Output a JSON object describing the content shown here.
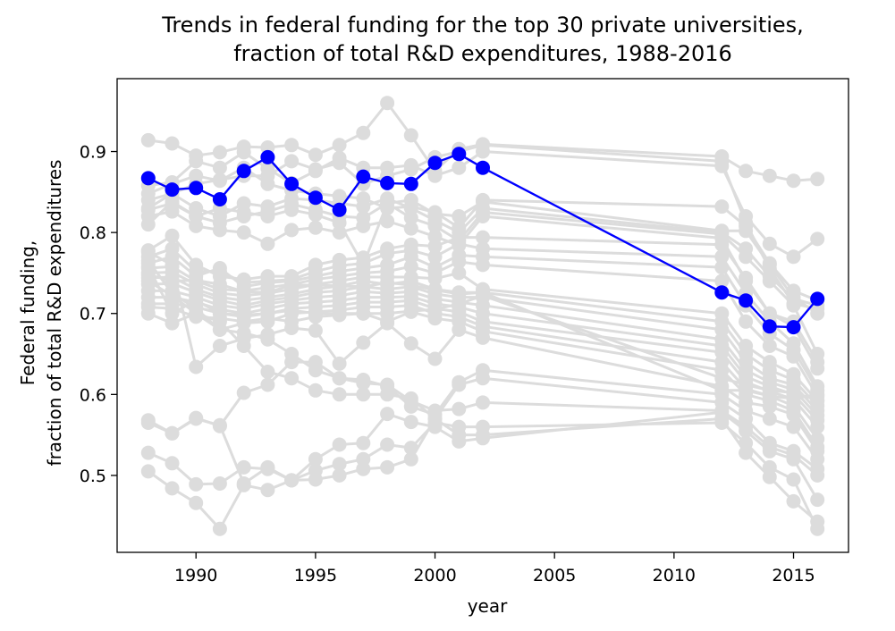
{
  "chart_data": {
    "type": "line",
    "title": [
      "Trends in federal funding for the top 30 private universities,",
      "fraction of total R&D expenditures, 1988-2016"
    ],
    "xlabel": "year",
    "ylabel": [
      "Federal funding,",
      "fraction of total R&D expenditures"
    ],
    "xlim": [
      1986.7,
      2017.3
    ],
    "ylim": [
      0.405,
      0.99
    ],
    "xticks": [
      1990,
      1995,
      2000,
      2005,
      2010,
      2015
    ],
    "yticks": [
      0.5,
      0.6,
      0.7,
      0.8,
      0.9
    ],
    "x": [
      1988,
      1989,
      1990,
      1991,
      1992,
      1993,
      1994,
      1995,
      1996,
      1997,
      1998,
      1999,
      2000,
      2001,
      2002,
      2012,
      2013,
      2014,
      2015,
      2016
    ],
    "grid": false,
    "colors": {
      "highlight": "#0000ff",
      "background_series": "#dcdcdc"
    },
    "highlighted_series": {
      "values": [
        0.867,
        0.853,
        0.855,
        0.841,
        0.876,
        0.893,
        0.86,
        0.843,
        0.828,
        0.869,
        0.861,
        0.86,
        0.886,
        0.897,
        0.88,
        0.726,
        0.716,
        0.684,
        0.683,
        0.718
      ]
    },
    "background_series": [
      {
        "values": [
          0.914,
          0.91,
          0.895,
          0.899,
          0.906,
          0.905,
          0.908,
          0.896,
          0.908,
          0.923,
          0.96,
          0.92,
          0.876,
          0.903,
          0.909,
          0.894,
          0.876,
          0.87,
          0.864,
          0.866
        ]
      },
      {
        "values": [
          0.858,
          0.862,
          0.888,
          0.88,
          0.899,
          0.879,
          0.861,
          0.876,
          0.892,
          0.88,
          0.88,
          0.883,
          0.87,
          0.88,
          0.9,
          0.882,
          0.82,
          0.786,
          0.77,
          0.792
        ]
      },
      {
        "values": [
          0.848,
          0.86,
          0.87,
          0.864,
          0.88,
          0.86,
          0.852,
          0.848,
          0.845,
          0.842,
          0.83,
          0.832,
          0.825,
          0.806,
          0.84,
          0.832,
          0.808,
          0.762,
          0.728,
          0.716
        ]
      },
      {
        "values": [
          0.84,
          0.848,
          0.83,
          0.82,
          0.836,
          0.832,
          0.842,
          0.84,
          0.836,
          0.832,
          0.842,
          0.83,
          0.815,
          0.8,
          0.83,
          0.8,
          0.78,
          0.746,
          0.718,
          0.71
        ]
      },
      {
        "values": [
          0.828,
          0.836,
          0.82,
          0.812,
          0.82,
          0.826,
          0.835,
          0.828,
          0.82,
          0.818,
          0.836,
          0.818,
          0.808,
          0.79,
          0.825,
          0.798,
          0.77,
          0.74,
          0.71,
          0.65
        ]
      },
      {
        "values": [
          0.82,
          0.826,
          0.808,
          0.803,
          0.8,
          0.786,
          0.803,
          0.806,
          0.8,
          0.808,
          0.814,
          0.805,
          0.795,
          0.784,
          0.82,
          0.793,
          0.74,
          0.7,
          0.69,
          0.64
        ]
      },
      {
        "values": [
          0.778,
          0.796,
          0.76,
          0.746,
          0.742,
          0.746,
          0.746,
          0.76,
          0.766,
          0.769,
          0.78,
          0.785,
          0.783,
          0.794,
          0.794,
          0.785,
          0.744,
          0.7,
          0.684,
          0.632
        ]
      },
      {
        "values": [
          0.77,
          0.78,
          0.752,
          0.752,
          0.738,
          0.74,
          0.742,
          0.752,
          0.759,
          0.762,
          0.774,
          0.778,
          0.77,
          0.786,
          0.78,
          0.77,
          0.725,
          0.69,
          0.663,
          0.61
        ]
      },
      {
        "values": [
          0.762,
          0.77,
          0.746,
          0.756,
          0.733,
          0.738,
          0.74,
          0.746,
          0.752,
          0.756,
          0.76,
          0.77,
          0.757,
          0.772,
          0.77,
          0.757,
          0.71,
          0.675,
          0.655,
          0.605
        ]
      },
      {
        "values": [
          0.756,
          0.758,
          0.74,
          0.73,
          0.728,
          0.732,
          0.736,
          0.742,
          0.746,
          0.75,
          0.752,
          0.758,
          0.75,
          0.764,
          0.76,
          0.74,
          0.69,
          0.66,
          0.647,
          0.598
        ]
      },
      {
        "values": [
          0.75,
          0.751,
          0.736,
          0.725,
          0.722,
          0.725,
          0.73,
          0.736,
          0.74,
          0.745,
          0.745,
          0.745,
          0.743,
          0.75,
          0.73,
          0.7,
          0.66,
          0.64,
          0.625,
          0.592
        ]
      },
      {
        "values": [
          0.744,
          0.745,
          0.73,
          0.72,
          0.716,
          0.72,
          0.724,
          0.73,
          0.734,
          0.74,
          0.736,
          0.74,
          0.73,
          0.726,
          0.726,
          0.69,
          0.65,
          0.63,
          0.618,
          0.586
        ]
      },
      {
        "values": [
          0.736,
          0.737,
          0.726,
          0.716,
          0.71,
          0.716,
          0.72,
          0.726,
          0.728,
          0.733,
          0.73,
          0.733,
          0.724,
          0.72,
          0.72,
          0.68,
          0.64,
          0.62,
          0.612,
          0.58
        ]
      },
      {
        "values": [
          0.728,
          0.728,
          0.72,
          0.71,
          0.706,
          0.712,
          0.716,
          0.72,
          0.722,
          0.727,
          0.725,
          0.727,
          0.718,
          0.714,
          0.71,
          0.668,
          0.63,
          0.615,
          0.606,
          0.574
        ]
      },
      {
        "values": [
          0.72,
          0.72,
          0.714,
          0.705,
          0.7,
          0.706,
          0.712,
          0.714,
          0.716,
          0.72,
          0.72,
          0.721,
          0.712,
          0.708,
          0.7,
          0.66,
          0.622,
          0.61,
          0.6,
          0.568
        ]
      },
      {
        "values": [
          0.712,
          0.712,
          0.708,
          0.7,
          0.696,
          0.7,
          0.706,
          0.708,
          0.71,
          0.714,
          0.714,
          0.716,
          0.706,
          0.702,
          0.69,
          0.652,
          0.615,
          0.604,
          0.594,
          0.56
        ]
      },
      {
        "values": [
          0.7,
          0.688,
          0.7,
          0.68,
          0.688,
          0.69,
          0.7,
          0.702,
          0.704,
          0.708,
          0.708,
          0.71,
          0.7,
          0.696,
          0.684,
          0.64,
          0.607,
          0.598,
          0.586,
          0.545
        ]
      },
      {
        "values": [
          0.708,
          0.706,
          0.696,
          0.694,
          0.69,
          0.694,
          0.69,
          0.696,
          0.698,
          0.7,
          0.69,
          0.702,
          0.694,
          0.69,
          0.678,
          0.63,
          0.6,
          0.592,
          0.58,
          0.535
        ]
      },
      {
        "values": [
          0.776,
          0.76,
          0.634,
          0.66,
          0.669,
          0.674,
          0.682,
          0.679,
          0.638,
          0.664,
          0.688,
          0.663,
          0.644,
          0.68,
          0.67,
          0.61,
          0.59,
          0.585,
          0.575,
          0.53
        ]
      },
      {
        "values": [
          0.765,
          0.725,
          0.706,
          0.68,
          0.676,
          0.668,
          0.65,
          0.63,
          0.62,
          0.618,
          0.61,
          0.585,
          0.575,
          0.615,
          0.63,
          0.6,
          0.58,
          0.57,
          0.56,
          0.52
        ]
      },
      {
        "values": [
          0.74,
          0.722,
          0.7,
          0.69,
          0.66,
          0.628,
          0.62,
          0.605,
          0.6,
          0.6,
          0.6,
          0.595,
          0.57,
          0.612,
          0.62,
          0.59,
          0.57,
          0.54,
          0.53,
          0.508
        ]
      },
      {
        "values": [
          0.568,
          0.552,
          0.571,
          0.561,
          0.602,
          0.612,
          0.64,
          0.64,
          0.62,
          0.614,
          0.612,
          0.592,
          0.58,
          0.582,
          0.59,
          0.58,
          0.56,
          0.535,
          0.525,
          0.5
        ]
      },
      {
        "values": [
          0.565,
          0.552,
          0.57,
          0.562,
          0.49,
          0.51,
          0.494,
          0.52,
          0.538,
          0.54,
          0.576,
          0.566,
          0.56,
          0.542,
          0.546,
          0.578,
          0.555,
          0.53,
          0.52,
          0.47
        ]
      },
      {
        "values": [
          0.528,
          0.515,
          0.489,
          0.49,
          0.51,
          0.508,
          0.494,
          0.495,
          0.5,
          0.508,
          0.51,
          0.52,
          0.57,
          0.55,
          0.55,
          0.57,
          0.528,
          0.498,
          0.468,
          0.443
        ]
      },
      {
        "values": [
          0.505,
          0.484,
          0.466,
          0.434,
          0.488,
          0.482,
          0.494,
          0.506,
          0.514,
          0.52,
          0.538,
          0.534,
          0.565,
          0.56,
          0.56,
          0.565,
          0.54,
          0.51,
          0.495,
          0.434
        ]
      },
      {
        "values": [
          0.83,
          0.848,
          0.86,
          0.865,
          0.87,
          0.87,
          0.888,
          0.878,
          0.886,
          0.86,
          0.87,
          0.878,
          0.893,
          0.9,
          0.908,
          0.888,
          0.812,
          0.755,
          0.712,
          0.706
        ]
      },
      {
        "values": [
          0.81,
          0.838,
          0.82,
          0.83,
          0.825,
          0.82,
          0.828,
          0.822,
          0.812,
          0.76,
          0.836,
          0.84,
          0.823,
          0.82,
          0.838,
          0.802,
          0.802,
          0.76,
          0.72,
          0.7
        ]
      },
      {
        "values": [
          0.758,
          0.7,
          0.716,
          0.7,
          0.698,
          0.7,
          0.704,
          0.7,
          0.7,
          0.7,
          0.7,
          0.703,
          0.705,
          0.712,
          0.722,
          0.62,
          0.612,
          0.605,
          0.602,
          0.593
        ]
      },
      {
        "values": [
          0.748,
          0.74,
          0.741,
          0.736,
          0.727,
          0.726,
          0.735,
          0.735,
          0.734,
          0.733,
          0.738,
          0.735,
          0.729,
          0.724,
          0.726,
          0.605,
          0.605,
          0.598,
          0.595,
          0.6
        ]
      }
    ]
  }
}
